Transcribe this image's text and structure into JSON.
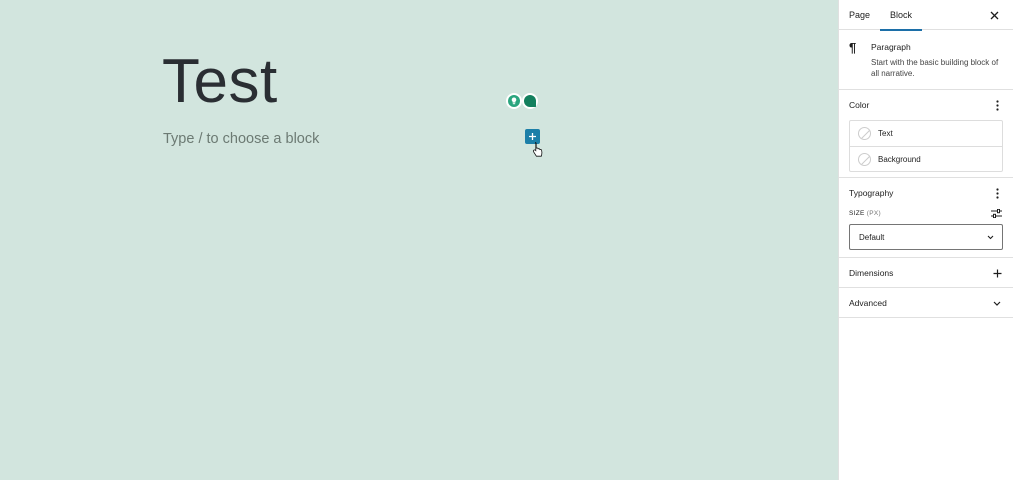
{
  "editor": {
    "title": "Test",
    "placeholder": "Type / to choose a block"
  },
  "sidebar": {
    "tabs": [
      {
        "label": "Page"
      },
      {
        "label": "Block"
      }
    ],
    "active_tab": "Block",
    "block": {
      "name": "Paragraph",
      "description": "Start with the basic building block of all narrative."
    },
    "color": {
      "heading": "Color",
      "items": [
        {
          "label": "Text"
        },
        {
          "label": "Background"
        }
      ]
    },
    "typography": {
      "heading": "Typography",
      "size_label": "SIZE",
      "size_unit": "(PX)",
      "size_value": "Default"
    },
    "dimensions": {
      "heading": "Dimensions"
    },
    "advanced": {
      "heading": "Advanced"
    }
  },
  "colors": {
    "canvas_bg": "#d2e5de",
    "accent": "#1c7fa8",
    "sidebar_bg": "#ffffff"
  },
  "icons": {
    "pilcrow": "paragraph-icon",
    "close": "close-icon",
    "more": "more-vertical-icon",
    "controls": "sliders-icon",
    "add": "plus-icon",
    "chevron": "chevron-down-icon"
  }
}
